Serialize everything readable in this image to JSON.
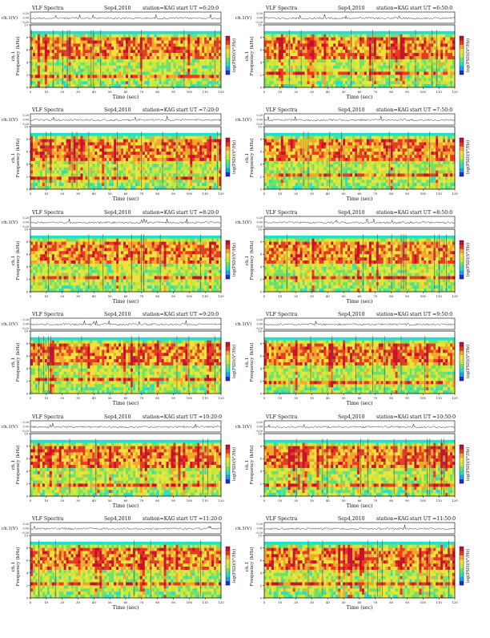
{
  "page": {
    "title": "VLF Spectra grid"
  },
  "chart_data": [
    {
      "type": "heatmap",
      "header": {
        "title": "VLF Spectra",
        "date": "Sep4,2010",
        "station": "station=KAG",
        "start": "start UT =6:20:0"
      },
      "trace_label": "ch.1(V)",
      "trace_ticks": [
        "0.20",
        "0.00",
        "-0.20"
      ],
      "ylabel": "ch.1\nFrequency (kHz)",
      "yticks": [
        "0",
        "2",
        "4",
        "6",
        "8",
        "10"
      ],
      "ylim": [
        0,
        10
      ],
      "xlabel": "Time (sec)",
      "xticks": [
        "0",
        "10",
        "20",
        "30",
        "40",
        "50",
        "60",
        "70",
        "80",
        "90",
        "100",
        "110",
        "120"
      ],
      "xlim": [
        0,
        120
      ],
      "colorbar_label": "log(PSD)(V²/Hz)",
      "colorbar_ticks": [
        "-",
        "-",
        "-"
      ]
    },
    {
      "type": "heatmap",
      "header": {
        "title": "VLF Spectra",
        "date": "Sep4,2010",
        "station": "station=KAG",
        "start": "start UT =6:50:0"
      },
      "trace_label": "ch.1(V)",
      "trace_ticks": [
        "0.20",
        "0.00",
        "-0.20"
      ],
      "ylabel": "ch.1\nFrequency (kHz)",
      "yticks": [
        "0",
        "2",
        "4",
        "6",
        "8",
        "10"
      ],
      "ylim": [
        0,
        10
      ],
      "xlabel": "Time (sec)",
      "xticks": [
        "0",
        "10",
        "20",
        "30",
        "40",
        "50",
        "60",
        "70",
        "80",
        "90",
        "100",
        "110",
        "120"
      ],
      "xlim": [
        0,
        120
      ],
      "colorbar_label": "log(PSD)(V²/Hz)",
      "colorbar_ticks": [
        "-",
        "-",
        "-"
      ]
    },
    {
      "type": "heatmap",
      "header": {
        "title": "VLF Spectra",
        "date": "Sep4,2010",
        "station": "station=KAG",
        "start": "start UT =7:20:0"
      },
      "trace_label": "ch.1(V)",
      "trace_ticks": [
        "0.20",
        "0.00",
        "-0.20"
      ],
      "ylabel": "ch.1\nFrequency (kHz)",
      "yticks": [
        "0",
        "2",
        "4",
        "6",
        "8",
        "10"
      ],
      "ylim": [
        0,
        10
      ],
      "xlabel": "Time (sec)",
      "xticks": [
        "0",
        "10",
        "20",
        "30",
        "40",
        "50",
        "60",
        "70",
        "80",
        "90",
        "100",
        "110",
        "120"
      ],
      "xlim": [
        0,
        120
      ],
      "colorbar_label": "log(PSD)(V²/Hz)",
      "colorbar_ticks": [
        "-",
        "-",
        "-"
      ]
    },
    {
      "type": "heatmap",
      "header": {
        "title": "VLF Spectra",
        "date": "Sep4,2010",
        "station": "station=KAG",
        "start": "start UT =7:50:0"
      },
      "trace_label": "ch.1(V)",
      "trace_ticks": [
        "0.20",
        "0.00",
        "-0.20"
      ],
      "ylabel": "ch.1\nFrequency (kHz)",
      "yticks": [
        "0",
        "2",
        "4",
        "6",
        "8",
        "10"
      ],
      "ylim": [
        0,
        10
      ],
      "xlabel": "Time (sec)",
      "xticks": [
        "0",
        "10",
        "20",
        "30",
        "40",
        "50",
        "60",
        "70",
        "80",
        "90",
        "100",
        "110",
        "120"
      ],
      "xlim": [
        0,
        120
      ],
      "colorbar_label": "log(PSD)(V²/Hz)",
      "colorbar_ticks": [
        "-",
        "-",
        "-"
      ]
    },
    {
      "type": "heatmap",
      "header": {
        "title": "VLF Spectra",
        "date": "Sep4,2010",
        "station": "station=KAG",
        "start": "start UT =8:20:0"
      },
      "trace_label": "ch.1(V)",
      "trace_ticks": [
        "0.20",
        "0.00",
        "-0.20"
      ],
      "ylabel": "ch.1\nFrequency (kHz)",
      "yticks": [
        "0",
        "2",
        "4",
        "6",
        "8",
        "10"
      ],
      "ylim": [
        0,
        10
      ],
      "xlabel": "Time (sec)",
      "xticks": [
        "0",
        "10",
        "20",
        "30",
        "40",
        "50",
        "60",
        "70",
        "80",
        "90",
        "100",
        "110",
        "120"
      ],
      "xlim": [
        0,
        120
      ],
      "colorbar_label": "log(PSD)(V²/Hz)",
      "colorbar_ticks": [
        "-",
        "-",
        "-"
      ]
    },
    {
      "type": "heatmap",
      "header": {
        "title": "VLF Spectra",
        "date": "Sep4,2010",
        "station": "station=KAG",
        "start": "start UT =8:50:0"
      },
      "trace_label": "ch.1(V)",
      "trace_ticks": [
        "0.20",
        "0.00",
        "-0.20"
      ],
      "ylabel": "ch.1\nFrequency (kHz)",
      "yticks": [
        "0",
        "2",
        "4",
        "6",
        "8",
        "10"
      ],
      "ylim": [
        0,
        10
      ],
      "xlabel": "Time (sec)",
      "xticks": [
        "0",
        "10",
        "20",
        "30",
        "40",
        "50",
        "60",
        "70",
        "80",
        "90",
        "100",
        "110",
        "120"
      ],
      "xlim": [
        0,
        120
      ],
      "colorbar_label": "log(PSD)(V²/Hz)",
      "colorbar_ticks": [
        "-",
        "-",
        "-"
      ]
    },
    {
      "type": "heatmap",
      "header": {
        "title": "VLF Spectra",
        "date": "Sep4,2010",
        "station": "station=KAG",
        "start": "start UT =9:20:0"
      },
      "trace_label": "ch.1(V)",
      "trace_ticks": [
        "0.20",
        "0.00",
        "-0.20"
      ],
      "ylabel": "ch.1\nFrequency (kHz)",
      "yticks": [
        "0",
        "2",
        "4",
        "6",
        "8",
        "10"
      ],
      "ylim": [
        0,
        10
      ],
      "xlabel": "Time (sec)",
      "xticks": [
        "0",
        "10",
        "20",
        "30",
        "40",
        "50",
        "60",
        "70",
        "80",
        "90",
        "100",
        "110",
        "120"
      ],
      "xlim": [
        0,
        120
      ],
      "colorbar_label": "log(PSD)(V²/Hz)",
      "colorbar_ticks": [
        "-",
        "-",
        "-"
      ]
    },
    {
      "type": "heatmap",
      "header": {
        "title": "VLF Spectra",
        "date": "Sep4,2010",
        "station": "station=KAG",
        "start": "start UT =9:50:0"
      },
      "trace_label": "ch.1(V)",
      "trace_ticks": [
        "0.20",
        "0.00",
        "-0.20"
      ],
      "ylabel": "ch.1\nFrequency (kHz)",
      "yticks": [
        "0",
        "2",
        "4",
        "6",
        "8",
        "10"
      ],
      "ylim": [
        0,
        10
      ],
      "xlabel": "Time (sec)",
      "xticks": [
        "0",
        "10",
        "20",
        "30",
        "40",
        "50",
        "60",
        "70",
        "80",
        "90",
        "100",
        "110",
        "120"
      ],
      "xlim": [
        0,
        120
      ],
      "colorbar_label": "log(PSD)(V²/Hz)",
      "colorbar_ticks": [
        "-",
        "-",
        "-"
      ]
    },
    {
      "type": "heatmap",
      "header": {
        "title": "VLF Spectra",
        "date": "Sep4,2010",
        "station": "station=KAG",
        "start": "start UT =10:20:0"
      },
      "trace_label": "ch.1(V)",
      "trace_ticks": [
        "0.20",
        "0.00",
        "-0.20"
      ],
      "ylabel": "ch.1\nFrequency (kHz)",
      "yticks": [
        "0",
        "2",
        "4",
        "6",
        "8",
        "10"
      ],
      "ylim": [
        0,
        10
      ],
      "xlabel": "Time (sec)",
      "xticks": [
        "0",
        "10",
        "20",
        "30",
        "40",
        "50",
        "60",
        "70",
        "80",
        "90",
        "100",
        "110",
        "120"
      ],
      "xlim": [
        0,
        120
      ],
      "colorbar_label": "log(PSD)(V²/Hz)",
      "colorbar_ticks": [
        "-",
        "-",
        "-"
      ]
    },
    {
      "type": "heatmap",
      "header": {
        "title": "VLF Spectra",
        "date": "Sep4,2010",
        "station": "station=KAG",
        "start": "start UT =10:50:0"
      },
      "trace_label": "ch.1(V)",
      "trace_ticks": [
        "0.20",
        "0.00",
        "-0.20"
      ],
      "ylabel": "ch.1\nFrequency (kHz)",
      "yticks": [
        "0",
        "2",
        "4",
        "6",
        "8",
        "10"
      ],
      "ylim": [
        0,
        10
      ],
      "xlabel": "Time (sec)",
      "xticks": [
        "0",
        "10",
        "20",
        "30",
        "40",
        "50",
        "60",
        "70",
        "80",
        "90",
        "100",
        "110",
        "120"
      ],
      "xlim": [
        0,
        120
      ],
      "colorbar_label": "log(PSD)(V²/Hz)",
      "colorbar_ticks": [
        "-",
        "-",
        "-"
      ]
    },
    {
      "type": "heatmap",
      "header": {
        "title": "VLF Spectra",
        "date": "Sep4,2010",
        "station": "station=KAG",
        "start": "start UT =11:20:0"
      },
      "trace_label": "ch.1(V)",
      "trace_ticks": [
        "0.20",
        "0.00",
        "-0.20"
      ],
      "ylabel": "ch.1\nFrequency (kHz)",
      "yticks": [
        "0",
        "2",
        "4",
        "6",
        "8",
        "10"
      ],
      "ylim": [
        0,
        10
      ],
      "xlabel": "Time (sec)",
      "xticks": [
        "0",
        "10",
        "20",
        "30",
        "40",
        "50",
        "60",
        "70",
        "80",
        "90",
        "100",
        "110",
        "120"
      ],
      "xlim": [
        0,
        120
      ],
      "colorbar_label": "log(PSD)(V²/Hz)",
      "colorbar_ticks": [
        "-",
        "-",
        "-"
      ]
    },
    {
      "type": "heatmap",
      "header": {
        "title": "VLF Spectra",
        "date": "Sep4,2010",
        "station": "station=KAG",
        "start": "start UT =11:50:0"
      },
      "trace_label": "ch.1(V)",
      "trace_ticks": [
        "0.20",
        "0.00",
        "-0.20"
      ],
      "ylabel": "ch.1\nFrequency (kHz)",
      "yticks": [
        "0",
        "2",
        "4",
        "6",
        "8",
        "10"
      ],
      "ylim": [
        0,
        10
      ],
      "xlabel": "Time (sec)",
      "xticks": [
        "0",
        "10",
        "20",
        "30",
        "40",
        "50",
        "60",
        "70",
        "80",
        "90",
        "100",
        "110",
        "120"
      ],
      "xlim": [
        0,
        120
      ],
      "colorbar_label": "log(PSD)(V²/Hz)",
      "colorbar_ticks": [
        "-",
        "-",
        "-"
      ]
    }
  ],
  "colormap": [
    "#1f2fd6",
    "#1aa3e8",
    "#22e0c8",
    "#6fe06a",
    "#c4e83a",
    "#ece43c",
    "#f3a62c",
    "#e63a22",
    "#c8102a"
  ]
}
